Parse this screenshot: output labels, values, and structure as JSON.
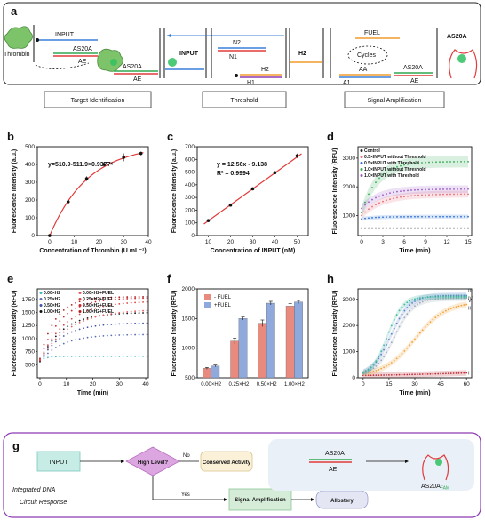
{
  "panel_labels": {
    "a": "a",
    "b": "b",
    "c": "c",
    "d": "d",
    "e": "e",
    "f": "f",
    "g": "g",
    "h": "h"
  },
  "panel_a": {
    "thrombin": "Thrombin",
    "input": "INPUT",
    "as20a": "AS20A",
    "ae": "AE",
    "as20a2": "AS20A",
    "ae2": "AE",
    "input_box": "INPUT",
    "n2": "N2",
    "n1": "N1",
    "h2": "H2",
    "h1": "H1",
    "h2_box": "H2",
    "fuel": "FUEL",
    "cycles": "Cycles",
    "aa": "AA",
    "a1": "A1",
    "as20a3": "AS20A",
    "ae3": "AE",
    "as20a_out": "AS20A",
    "stage1": "Target Identification",
    "stage2": "Threshold",
    "stage3": "Signal Amplification",
    "colors": {
      "green": "#2fa84f",
      "red": "#e23b3b",
      "blue": "#3a7fd8",
      "purple": "#8e3ab5",
      "orange": "#f29b2b",
      "teal": "#3cb8a8"
    }
  },
  "chart_data": [
    {
      "panel": "b",
      "type": "scatter",
      "xlabel": "Concentration of Thrombin (U mL⁻¹)",
      "ylabel": "Fluorescence Intensity (a.u.)",
      "annotation": "y=510.9-511.9×0.9377ˣ",
      "xlim": [
        -5,
        40
      ],
      "ylim": [
        0,
        500
      ],
      "xticks": [
        0,
        10,
        20,
        30,
        40
      ],
      "yticks": [
        0,
        100,
        200,
        300,
        400,
        500
      ],
      "x": [
        0,
        7.5,
        15,
        22,
        30,
        37
      ],
      "y": [
        0,
        190,
        320,
        400,
        440,
        462
      ],
      "err": [
        5,
        10,
        14,
        12,
        22,
        10
      ]
    },
    {
      "panel": "c",
      "type": "scatter",
      "xlabel": "Concentration of INPUT (nM)",
      "ylabel": "Fluorescence Intensity (a.u.)",
      "annotation1": "y = 12.56x - 9.138",
      "annotation2": "R² = 0.9994",
      "xlim": [
        5,
        55
      ],
      "ylim": [
        0,
        700
      ],
      "xticks": [
        10,
        20,
        30,
        40,
        50
      ],
      "yticks": [
        0,
        100,
        200,
        300,
        400,
        500,
        600,
        700
      ],
      "x": [
        10,
        20,
        30,
        40,
        50
      ],
      "y": [
        118,
        240,
        368,
        495,
        628
      ],
      "err": [
        4,
        5,
        6,
        6,
        18
      ]
    },
    {
      "panel": "d",
      "type": "line",
      "xlabel": "Time (min)",
      "ylabel": "Fluorescence Intensity (RFU)",
      "xlim": [
        -0.5,
        15.5
      ],
      "ylim": [
        300,
        3400
      ],
      "xticks": [
        0,
        3,
        6,
        9,
        12,
        15
      ],
      "yticks": [
        1000,
        2000,
        3000
      ],
      "series": [
        {
          "name": "Control",
          "color": "#222222",
          "start": 560,
          "end": 560,
          "k": 1
        },
        {
          "name": "0.5×INPUT without Threshold",
          "color": "#e86a78",
          "start": 1000,
          "end": 1750,
          "k": 0.35
        },
        {
          "name": "0.5×INPUT with Threshold",
          "color": "#2b6fd6",
          "start": 880,
          "end": 960,
          "k": 0.5
        },
        {
          "name": "1.0×INPUT without Threshold",
          "color": "#2fa84f",
          "start": 1100,
          "end": 2880,
          "k": 0.45
        },
        {
          "name": "1.0×INPUT with Threshold",
          "color": "#9b59c8",
          "start": 1250,
          "end": 1920,
          "k": 0.4
        }
      ]
    },
    {
      "panel": "e",
      "type": "line",
      "xlabel": "Time (min)",
      "ylabel": "Fluorescence Intensity (RFU)",
      "xlim": [
        -1,
        41
      ],
      "ylim": [
        250,
        1950
      ],
      "xticks": [
        0,
        10,
        20,
        30,
        40
      ],
      "yticks": [
        500,
        750,
        1000,
        1250,
        1500,
        1750
      ],
      "series": [
        {
          "name": "0.00×H2",
          "color": "#3cb8c8",
          "start": 580,
          "end": 660,
          "k": 0.4
        },
        {
          "name": "0.25×H2",
          "color": "#5a6fb8",
          "start": 560,
          "end": 1080,
          "k": 0.12
        },
        {
          "name": "0.50×H2",
          "color": "#3f55a8",
          "start": 560,
          "end": 1300,
          "k": 0.12
        },
        {
          "name": "1.00×H2",
          "color": "#111111",
          "start": 560,
          "end": 1500,
          "k": 0.12
        },
        {
          "name": "0.00×H2+FUEL",
          "color": "#e85a5a",
          "start": 580,
          "end": 1560,
          "k": 0.09
        },
        {
          "name": "0.25×H2+FUEL",
          "color": "#d94040",
          "start": 580,
          "end": 1720,
          "k": 0.1
        },
        {
          "name": "0.50×H2+FUEL",
          "color": "#cc2a2a",
          "start": 600,
          "end": 1780,
          "k": 0.13
        },
        {
          "name": "1.00×H2+FUEL",
          "color": "#b01a1a",
          "start": 620,
          "end": 1800,
          "k": 0.17
        }
      ]
    },
    {
      "panel": "f",
      "type": "bar",
      "xlabel": "",
      "ylabel": "Fluorescence Intensity (RFU)",
      "ylim": [
        500,
        2000
      ],
      "yticks": [
        500,
        1000,
        1500,
        2000
      ],
      "categories": [
        "0.00×H2",
        "0.25×H2",
        "0.50×H2",
        "1.00×H2"
      ],
      "series": [
        {
          "name": "- FUEL",
          "color": "#e98a7e",
          "values": [
            660,
            1120,
            1420,
            1710
          ]
        },
        {
          "name": "+FUEL",
          "color": "#8fa9dc",
          "values": [
            700,
            1500,
            1760,
            1780
          ]
        }
      ],
      "err": [
        [
          15,
          50,
          55,
          40
        ],
        [
          15,
          25,
          30,
          25
        ]
      ]
    },
    {
      "panel": "h",
      "type": "line",
      "xlabel": "Time (min)",
      "ylabel": "Fluorescence Intensity (RFU)",
      "xlim": [
        -3,
        63
      ],
      "ylim": [
        0,
        3400
      ],
      "xticks": [
        0,
        15,
        30,
        45,
        60
      ],
      "yticks": [
        0,
        1000,
        2000,
        3000
      ],
      "series": [
        {
          "name": "I",
          "color": "#c0303a",
          "start": 60,
          "end": 310,
          "mid": 60,
          "s": 30
        },
        {
          "name": "II",
          "color": "#f2a23a",
          "start": 60,
          "end": 2900,
          "mid": 30,
          "s": 9
        },
        {
          "name": "III",
          "color": "#5a7fd0",
          "start": 60,
          "end": 3150,
          "mid": 16,
          "s": 5.5
        },
        {
          "name": "IV",
          "color": "#9aa8b8",
          "start": 60,
          "end": 3050,
          "mid": 18,
          "s": 5.5
        },
        {
          "name": "V",
          "color": "#3cb89a",
          "start": 60,
          "end": 3100,
          "mid": 14,
          "s": 4.5
        }
      ]
    }
  ],
  "panel_g": {
    "input": "INPUT",
    "high_level": "High Level?",
    "no": "No",
    "yes": "Yes",
    "conserved": "Conserved Activity",
    "signal_amp": "Signal Amplification",
    "allostery": "Allostery",
    "integrated": "Integrated DNA Circuit Response",
    "as20a": "AS20A",
    "ae": "AE",
    "as20a_fam": "AS20A",
    "fam": "FAM"
  }
}
